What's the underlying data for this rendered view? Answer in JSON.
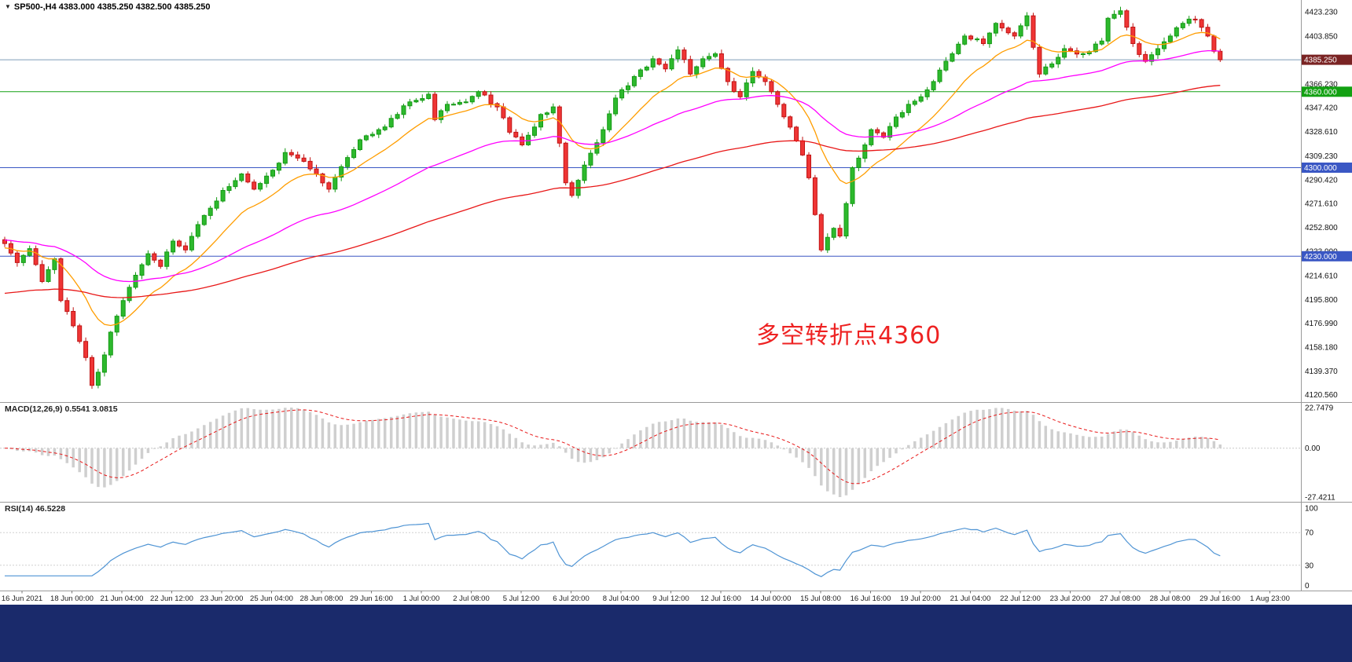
{
  "window": {
    "title": "SP500-,H4  4383.000 4385.250 4382.500 4385.250",
    "symbol_marker": "▼"
  },
  "indicators": {
    "macd_label": "MACD(12,26,9) 0.5541 3.0815",
    "rsi_label": "RSI(14) 46.5228"
  },
  "annotation": {
    "text": "多空转折点4360",
    "color": "#ee2222"
  },
  "taskbar": {
    "color": "#1a2a6b"
  },
  "chart_data": {
    "type": "candlestick",
    "symbol": "SP500-",
    "timeframe": "H4",
    "current": {
      "open": 4383.0,
      "high": 4385.25,
      "low": 4382.5,
      "close": 4385.25
    },
    "bars": 196,
    "close_waypoints": [
      [
        0,
        4240
      ],
      [
        2,
        4225
      ],
      [
        4,
        4236
      ],
      [
        6,
        4210
      ],
      [
        8,
        4228
      ],
      [
        9,
        4195
      ],
      [
        11,
        4175
      ],
      [
        13,
        4150
      ],
      [
        14,
        4128
      ],
      [
        16,
        4152
      ],
      [
        17,
        4170
      ],
      [
        19,
        4195
      ],
      [
        21,
        4215
      ],
      [
        23,
        4232
      ],
      [
        25,
        4222
      ],
      [
        27,
        4242
      ],
      [
        29,
        4235
      ],
      [
        31,
        4255
      ],
      [
        33,
        4268
      ],
      [
        35,
        4282
      ],
      [
        38,
        4295
      ],
      [
        40,
        4283
      ],
      [
        43,
        4298
      ],
      [
        45,
        4312
      ],
      [
        48,
        4305
      ],
      [
        51,
        4288
      ],
      [
        52,
        4283
      ],
      [
        55,
        4308
      ],
      [
        57,
        4322
      ],
      [
        60,
        4330
      ],
      [
        63,
        4342
      ],
      [
        65,
        4352
      ],
      [
        68,
        4358
      ],
      [
        69,
        4338
      ],
      [
        71,
        4350
      ],
      [
        74,
        4352
      ],
      [
        76,
        4360
      ],
      [
        79,
        4348
      ],
      [
        81,
        4328
      ],
      [
        83,
        4318
      ],
      [
        86,
        4342
      ],
      [
        88,
        4348
      ],
      [
        90,
        4288
      ],
      [
        91,
        4278
      ],
      [
        93,
        4302
      ],
      [
        96,
        4330
      ],
      [
        98,
        4355
      ],
      [
        101,
        4372
      ],
      [
        104,
        4386
      ],
      [
        106,
        4378
      ],
      [
        108,
        4393
      ],
      [
        110,
        4374
      ],
      [
        112,
        4386
      ],
      [
        114,
        4390
      ],
      [
        116,
        4368
      ],
      [
        118,
        4356
      ],
      [
        120,
        4376
      ],
      [
        122,
        4368
      ],
      [
        124,
        4350
      ],
      [
        126,
        4332
      ],
      [
        128,
        4310
      ],
      [
        129,
        4292
      ],
      [
        131,
        4235
      ],
      [
        133,
        4252
      ],
      [
        134,
        4246
      ],
      [
        136,
        4300
      ],
      [
        138,
        4318
      ],
      [
        139,
        4330
      ],
      [
        141,
        4324
      ],
      [
        143,
        4340
      ],
      [
        145,
        4350
      ],
      [
        147,
        4356
      ],
      [
        149,
        4368
      ],
      [
        152,
        4390
      ],
      [
        154,
        4404
      ],
      [
        157,
        4398
      ],
      [
        159,
        4414
      ],
      [
        162,
        4404
      ],
      [
        164,
        4420
      ],
      [
        166,
        4374
      ],
      [
        168,
        4382
      ],
      [
        170,
        4394
      ],
      [
        173,
        4390
      ],
      [
        176,
        4400
      ],
      [
        177,
        4418
      ],
      [
        179,
        4424
      ],
      [
        181,
        4398
      ],
      [
        183,
        4384
      ],
      [
        185,
        4394
      ],
      [
        187,
        4404
      ],
      [
        189,
        4414
      ],
      [
        191,
        4417
      ],
      [
        193,
        4404
      ],
      [
        194,
        4392
      ],
      [
        195,
        4385.25
      ]
    ],
    "price_axis": {
      "ylim": [
        4116,
        4430
      ],
      "labels": [
        "4423.230",
        "4403.850",
        "4366.230",
        "4347.420",
        "4328.610",
        "4309.230",
        "4290.420",
        "4271.610",
        "4252.800",
        "4233.990",
        "4214.610",
        "4195.800",
        "4176.990",
        "4158.180",
        "4139.370",
        "4120.560"
      ]
    },
    "hlines": [
      {
        "name": "current-price-line",
        "price": 4385.25,
        "label": "4385.250",
        "line_color": "#7f9db9",
        "badge_color": "#7a2323"
      },
      {
        "name": "level-4360",
        "price": 4360.0,
        "label": "4360.000",
        "line_color": "#12a112",
        "badge_color": "#12a112"
      },
      {
        "name": "level-4300",
        "price": 4300.0,
        "label": "4300.000",
        "line_color": "#3a57c4",
        "badge_color": "#3a57c4"
      },
      {
        "name": "level-4230",
        "price": 4230.0,
        "label": "4230.000",
        "line_color": "#3a57c4",
        "badge_color": "#3a57c4"
      }
    ],
    "moving_averages": [
      {
        "name": "fast",
        "period": 13,
        "seed": 4236,
        "color": "#ff9d00"
      },
      {
        "name": "mid",
        "period": 45,
        "seed": 4243,
        "color": "#ff00ff"
      },
      {
        "name": "slow",
        "period": 110,
        "seed": 4200,
        "color": "#e81717"
      }
    ],
    "macd": {
      "params": "12,26,9",
      "value": 0.5541,
      "signal": 3.0815,
      "ylim": [
        -27.4211,
        22.7479
      ],
      "axis_labels": [
        "22.7479",
        "0.00",
        "-27.4211"
      ]
    },
    "rsi": {
      "period": 14,
      "value": 46.5228,
      "levels": [
        70,
        30
      ],
      "axis_labels": [
        "100",
        "70",
        "30",
        "0"
      ]
    },
    "time_axis": [
      "16 Jun 2021",
      "18 Jun 00:00",
      "21 Jun 04:00",
      "22 Jun 12:00",
      "23 Jun 20:00",
      "25 Jun 04:00",
      "28 Jun 08:00",
      "29 Jun 16:00",
      "1 Jul 00:00",
      "2 Jul 08:00",
      "5 Jul 12:00",
      "6 Jul 20:00",
      "8 Jul 04:00",
      "9 Jul 12:00",
      "12 Jul 16:00",
      "14 Jul 00:00",
      "15 Jul 08:00",
      "16 Jul 16:00",
      "19 Jul 20:00",
      "21 Jul 04:00",
      "22 Jul 12:00",
      "23 Jul 20:00",
      "27 Jul 08:00",
      "28 Jul 08:00",
      "29 Jul 16:00",
      "1 Aug 23:00"
    ],
    "colors": {
      "up_stroke": "#149a14",
      "up_fill": "#2db92d",
      "down_stroke": "#c01414",
      "down_fill": "#ef3535",
      "macd_hist": "#cfcfcf",
      "macd_signal": "#e81717",
      "rsi_line": "#4f94d4",
      "axis_text": "#111111",
      "separator": "#9a9a9a",
      "background": "#ffffff"
    },
    "legend_position": "none",
    "grid": false
  }
}
